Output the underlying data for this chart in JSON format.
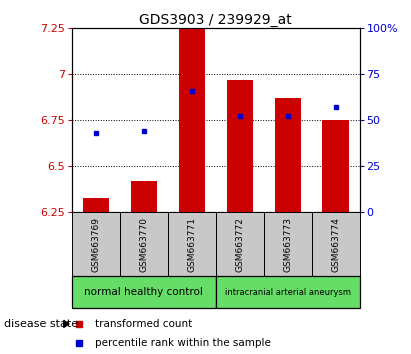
{
  "title": "GDS3903 / 239929_at",
  "samples": [
    "GSM663769",
    "GSM663770",
    "GSM663771",
    "GSM663772",
    "GSM663773",
    "GSM663774"
  ],
  "red_bar_values": [
    6.33,
    6.42,
    7.25,
    6.97,
    6.87,
    6.75
  ],
  "blue_sq_values": [
    6.68,
    6.69,
    6.91,
    6.775,
    6.775,
    6.82
  ],
  "ymin": 6.25,
  "ymax": 7.25,
  "yticks_left": [
    6.25,
    6.5,
    6.75,
    7.0,
    7.25
  ],
  "yticks_left_labels": [
    "6.25",
    "6.5",
    "6.75",
    "7",
    "7.25"
  ],
  "yticks_right": [
    0,
    25,
    50,
    75,
    100
  ],
  "yticks_right_labels": [
    "0",
    "25",
    "50",
    "75",
    "100%"
  ],
  "group_labels": [
    "normal healthy control",
    "intracranial arterial aneurysm"
  ],
  "group_starts": [
    0,
    3
  ],
  "group_ends": [
    3,
    6
  ],
  "group_colors": [
    "#66dd66",
    "#66dd66"
  ],
  "group_box_color": "#c8c8c8",
  "bar_color": "#cc0000",
  "blue_sq_color": "#0000cc",
  "legend_red_label": "transformed count",
  "legend_blue_label": "percentile rank within the sample",
  "disease_state_label": "disease state",
  "bar_width": 0.55,
  "title_fontsize": 10,
  "tick_fontsize": 8
}
